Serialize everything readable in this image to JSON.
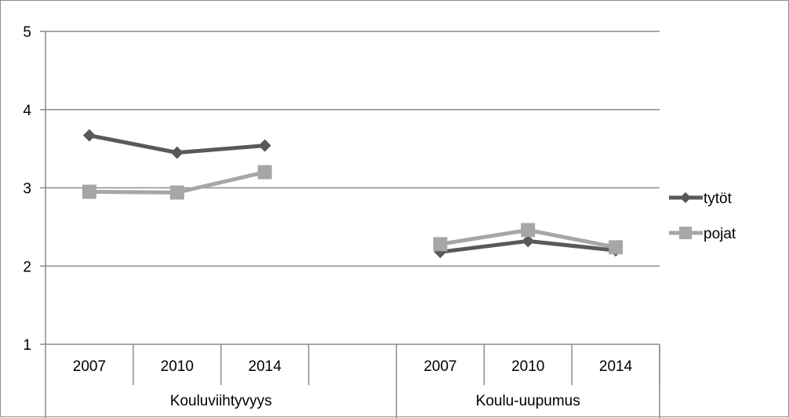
{
  "chart_data": {
    "type": "line",
    "title": "",
    "xlabel": "",
    "ylabel": "",
    "ylim": [
      1,
      5
    ],
    "yticks": [
      "1",
      "2",
      "3",
      "4",
      "5"
    ],
    "grid": true,
    "legend_position": "right",
    "groups": [
      {
        "label": "Kouluviihtyvyys",
        "years": [
          "2007",
          "2010",
          "2014"
        ]
      },
      {
        "label": "Koulu-uupumus",
        "years": [
          "2007",
          "2010",
          "2014"
        ]
      }
    ],
    "series": [
      {
        "name": "tytöt",
        "color": "#595959",
        "marker": "diamond",
        "segments": [
          [
            3.67,
            3.45,
            3.54
          ],
          [
            2.18,
            2.32,
            2.2
          ]
        ]
      },
      {
        "name": "pojat",
        "color": "#a6a6a6",
        "marker": "square",
        "segments": [
          [
            2.95,
            2.94,
            3.2
          ],
          [
            2.28,
            2.46,
            2.24
          ]
        ]
      }
    ]
  }
}
